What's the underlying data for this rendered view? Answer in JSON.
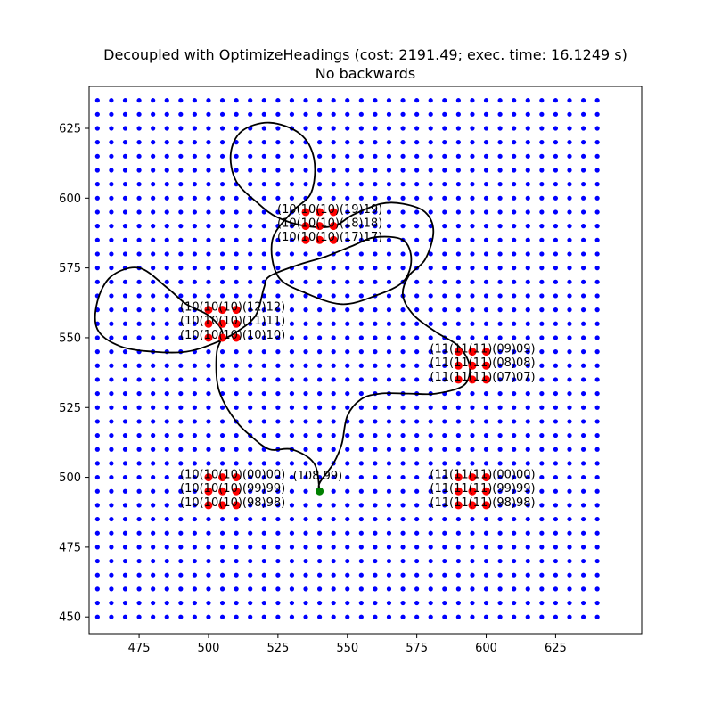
{
  "chart_data": {
    "type": "scatter",
    "title": "Decoupled with OptimizeHeadings (cost: 2191.49; exec. time: 16.1249 s)",
    "subtitle": "No backwards",
    "xlim": [
      457,
      656
    ],
    "ylim": [
      444,
      640
    ],
    "x_ticks": [
      475,
      500,
      525,
      550,
      575,
      600,
      625
    ],
    "y_ticks": [
      450,
      475,
      500,
      525,
      550,
      575,
      600,
      625
    ],
    "grid": false,
    "grid_points": {
      "x_start": 460,
      "x_end": 640,
      "y_start": 450,
      "y_end": 635,
      "step": 5,
      "color": "#0000ff"
    },
    "clusters": [
      {
        "id": "top",
        "points": [
          [
            535,
            585
          ],
          [
            540,
            585
          ],
          [
            545,
            585
          ],
          [
            535,
            590
          ],
          [
            540,
            590
          ],
          [
            545,
            590
          ],
          [
            535,
            595
          ],
          [
            540,
            595
          ],
          [
            545,
            595
          ]
        ],
        "labels": [
          {
            "text": "(10(10(10)(19)19)",
            "x": 535,
            "y": 596
          },
          {
            "text": "(10(10(10)(18)18)",
            "x": 535,
            "y": 591
          },
          {
            "text": "(10(10(10)(17)17)",
            "x": 535,
            "y": 586
          }
        ]
      },
      {
        "id": "upper-left",
        "points": [
          [
            500,
            550
          ],
          [
            505,
            550
          ],
          [
            510,
            550
          ],
          [
            500,
            555
          ],
          [
            505,
            555
          ],
          [
            510,
            555
          ],
          [
            500,
            560
          ],
          [
            505,
            560
          ],
          [
            510,
            560
          ]
        ],
        "labels": [
          {
            "text": "(10(10(10)(12)12)",
            "x": 500,
            "y": 561
          },
          {
            "text": "(10(10(10)(11)11)",
            "x": 500,
            "y": 556
          },
          {
            "text": "(10(10(10)(10)10)",
            "x": 500,
            "y": 551
          }
        ]
      },
      {
        "id": "right",
        "points": [
          [
            590,
            535
          ],
          [
            595,
            535
          ],
          [
            600,
            535
          ],
          [
            590,
            540
          ],
          [
            595,
            540
          ],
          [
            600,
            540
          ],
          [
            590,
            545
          ],
          [
            595,
            545
          ],
          [
            600,
            545
          ]
        ],
        "labels": [
          {
            "text": "(11(11(11)(09)09)",
            "x": 590,
            "y": 546
          },
          {
            "text": "(11(11(11)(08)08)",
            "x": 590,
            "y": 541
          },
          {
            "text": "(11(11(11)(07)07)",
            "x": 590,
            "y": 536
          }
        ]
      },
      {
        "id": "lower-left",
        "points": [
          [
            500,
            490
          ],
          [
            505,
            490
          ],
          [
            510,
            490
          ],
          [
            500,
            495
          ],
          [
            505,
            495
          ],
          [
            510,
            495
          ],
          [
            500,
            500
          ],
          [
            505,
            500
          ],
          [
            510,
            500
          ]
        ],
        "labels": [
          {
            "text": "(10(10(10)(00)00)",
            "x": 500,
            "y": 501
          },
          {
            "text": "(10(10(10)(99)99)",
            "x": 500,
            "y": 496
          },
          {
            "text": "(10(10(10)(98)98)",
            "x": 500,
            "y": 491
          }
        ]
      },
      {
        "id": "lower-right",
        "points": [
          [
            590,
            490
          ],
          [
            595,
            490
          ],
          [
            600,
            490
          ],
          [
            590,
            495
          ],
          [
            595,
            495
          ],
          [
            600,
            495
          ],
          [
            590,
            500
          ],
          [
            595,
            500
          ],
          [
            600,
            500
          ]
        ],
        "labels": [
          {
            "text": "(11(11(11)(00)00)",
            "x": 590,
            "y": 501
          },
          {
            "text": "(11(11(11)(99)99)",
            "x": 590,
            "y": 496
          },
          {
            "text": "(11(11(11)(98)98)",
            "x": 590,
            "y": 491
          }
        ]
      }
    ],
    "start_point": {
      "x": 540,
      "y": 495,
      "label": "(108,99)",
      "color": "#008000"
    },
    "path_color": "#000000",
    "point_color": "#ff0000",
    "path": [
      [
        540,
        495
      ],
      [
        538,
        505
      ],
      [
        530,
        510
      ],
      [
        522,
        510
      ],
      [
        515,
        515
      ],
      [
        510,
        520
      ],
      [
        505,
        528
      ],
      [
        503,
        535
      ],
      [
        503,
        545
      ],
      [
        505,
        552
      ],
      [
        500,
        558
      ],
      [
        492,
        562
      ],
      [
        485,
        568
      ],
      [
        475,
        575
      ],
      [
        465,
        572
      ],
      [
        460,
        563
      ],
      [
        460,
        553
      ],
      [
        468,
        547
      ],
      [
        480,
        545
      ],
      [
        492,
        545
      ],
      [
        502,
        548
      ],
      [
        510,
        552
      ],
      [
        517,
        558
      ],
      [
        520,
        568
      ],
      [
        522,
        572
      ],
      [
        532,
        576
      ],
      [
        542,
        579
      ],
      [
        552,
        583
      ],
      [
        560,
        586
      ],
      [
        570,
        585
      ],
      [
        573,
        578
      ],
      [
        570,
        570
      ],
      [
        560,
        565
      ],
      [
        548,
        562
      ],
      [
        535,
        566
      ],
      [
        525,
        572
      ],
      [
        523,
        585
      ],
      [
        530,
        595
      ],
      [
        537,
        602
      ],
      [
        538,
        614
      ],
      [
        533,
        623
      ],
      [
        522,
        627
      ],
      [
        512,
        624
      ],
      [
        508,
        616
      ],
      [
        510,
        606
      ],
      [
        518,
        598
      ],
      [
        525,
        593
      ],
      [
        535,
        590
      ],
      [
        545,
        590
      ],
      [
        552,
        594
      ],
      [
        562,
        598
      ],
      [
        570,
        598
      ],
      [
        578,
        595
      ],
      [
        581,
        588
      ],
      [
        578,
        578
      ],
      [
        572,
        572
      ],
      [
        570,
        565
      ],
      [
        574,
        558
      ],
      [
        582,
        552
      ],
      [
        590,
        547
      ],
      [
        594,
        540
      ],
      [
        592,
        533
      ],
      [
        582,
        530
      ],
      [
        572,
        530
      ],
      [
        562,
        530
      ],
      [
        555,
        528
      ],
      [
        550,
        522
      ],
      [
        548,
        512
      ],
      [
        545,
        505
      ],
      [
        540,
        498
      ],
      [
        540,
        495
      ]
    ]
  }
}
